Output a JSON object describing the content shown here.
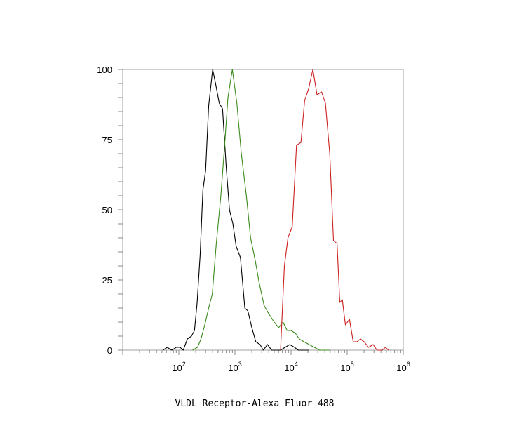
{
  "chart_data": {
    "type": "line",
    "xlabel": "VLDL Receptor-Alexa Fluor 488",
    "ylabel": "",
    "xscale": "log",
    "xlim": [
      10,
      1000000
    ],
    "ylim": [
      0,
      100
    ],
    "y_ticks": [
      "0",
      "25",
      "50",
      "75",
      "100"
    ],
    "x_ticks": [
      {
        "base": "10",
        "exp": "2",
        "value": 100
      },
      {
        "base": "10",
        "exp": "3",
        "value": 1000
      },
      {
        "base": "10",
        "exp": "4",
        "value": 10000
      },
      {
        "base": "10",
        "exp": "5",
        "value": 100000
      },
      {
        "base": "10",
        "exp": "6",
        "value": 1000000
      }
    ],
    "grid": false,
    "legend": "none",
    "series": [
      {
        "color": "#000000",
        "points": [
          [
            52,
            0
          ],
          [
            62,
            1
          ],
          [
            75,
            0
          ],
          [
            90,
            1
          ],
          [
            105,
            1
          ],
          [
            120,
            0
          ],
          [
            142,
            4
          ],
          [
            168,
            5
          ],
          [
            190,
            7
          ],
          [
            212,
            17
          ],
          [
            240,
            34
          ],
          [
            268,
            57
          ],
          [
            300,
            64
          ],
          [
            340,
            87
          ],
          [
            400,
            100
          ],
          [
            450,
            95
          ],
          [
            525,
            88
          ],
          [
            600,
            86
          ],
          [
            700,
            65
          ],
          [
            800,
            50
          ],
          [
            920,
            45
          ],
          [
            1050,
            37
          ],
          [
            1250,
            33
          ],
          [
            1500,
            15
          ],
          [
            1700,
            14
          ],
          [
            2000,
            8
          ],
          [
            2350,
            3
          ],
          [
            2800,
            2
          ],
          [
            3200,
            0
          ],
          [
            3800,
            2
          ],
          [
            4500,
            0
          ],
          [
            6500,
            0
          ],
          [
            7800,
            1
          ],
          [
            9500,
            2
          ],
          [
            11500,
            1
          ],
          [
            13500,
            0
          ],
          [
            16000,
            0
          ],
          [
            20500,
            0
          ]
        ]
      },
      {
        "color": "#3a8a1a",
        "points": [
          [
            175,
            0
          ],
          [
            215,
            1
          ],
          [
            248,
            4
          ],
          [
            290,
            9
          ],
          [
            340,
            15
          ],
          [
            395,
            20
          ],
          [
            465,
            38
          ],
          [
            560,
            55
          ],
          [
            650,
            72
          ],
          [
            750,
            90
          ],
          [
            900,
            100
          ],
          [
            1080,
            88
          ],
          [
            1300,
            70
          ],
          [
            1600,
            55
          ],
          [
            1900,
            40
          ],
          [
            2300,
            32
          ],
          [
            2700,
            24
          ],
          [
            3300,
            16
          ],
          [
            4000,
            13
          ],
          [
            5000,
            10
          ],
          [
            6000,
            8
          ],
          [
            7200,
            10
          ],
          [
            8500,
            7
          ],
          [
            10000,
            7
          ],
          [
            12000,
            6
          ],
          [
            14000,
            4
          ],
          [
            17000,
            3
          ],
          [
            21000,
            2
          ],
          [
            26000,
            1
          ],
          [
            32000,
            0
          ],
          [
            50000,
            0
          ]
        ]
      },
      {
        "color": "#cc1f1f",
        "points": [
          [
            6500,
            0
          ],
          [
            7600,
            30
          ],
          [
            8800,
            40
          ],
          [
            10500,
            44
          ],
          [
            12500,
            73
          ],
          [
            15000,
            74
          ],
          [
            17500,
            89
          ],
          [
            20500,
            93
          ],
          [
            24500,
            100
          ],
          [
            29000,
            91
          ],
          [
            35000,
            92
          ],
          [
            41000,
            88
          ],
          [
            49000,
            70
          ],
          [
            57000,
            39
          ],
          [
            66000,
            38
          ],
          [
            74000,
            17
          ],
          [
            82000,
            18
          ],
          [
            93000,
            9
          ],
          [
            110000,
            11
          ],
          [
            128000,
            3
          ],
          [
            150000,
            3
          ],
          [
            172000,
            4
          ],
          [
            200000,
            3
          ],
          [
            240000,
            1
          ],
          [
            290000,
            2
          ],
          [
            340000,
            0
          ],
          [
            420000,
            0
          ],
          [
            480000,
            1
          ],
          [
            550000,
            0
          ]
        ]
      }
    ]
  }
}
